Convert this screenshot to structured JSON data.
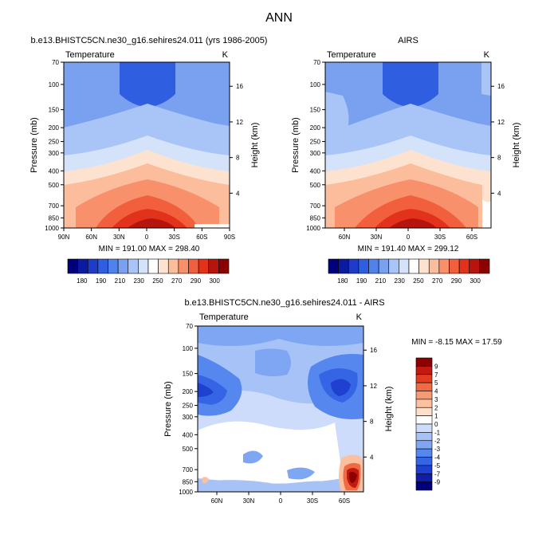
{
  "page": {
    "title": "ANN"
  },
  "colors": {
    "abs_levels": [
      180,
      190,
      200,
      210,
      220,
      230,
      240,
      250,
      260,
      270,
      280,
      290,
      300
    ],
    "abs_palette": [
      "#00007d",
      "#0c1a9f",
      "#1f3cc9",
      "#2f5fe0",
      "#4f82ea",
      "#7aa1f0",
      "#a9c4f6",
      "#d4e3fa",
      "#ffffff",
      "#fde3cf",
      "#fbbd9c",
      "#f7906b",
      "#f25f3c",
      "#e2321c",
      "#b5150c",
      "#8c0000"
    ],
    "diff_palette": [
      "#00007d",
      "#0f1ea8",
      "#1f40d0",
      "#3565e5",
      "#5687ee",
      "#7ea6f2",
      "#a6c2f6",
      "#cddcfa",
      "#ffffff",
      "#fde0cc",
      "#fbc0a0",
      "#f79a74",
      "#f16a43",
      "#e23c22",
      "#c21a10",
      "#8c0000"
    ]
  },
  "chart_data": [
    {
      "type": "heatmap",
      "title": "b.e13.BHISTC5CN.ne30_g16.sehires24.011 (yrs 1986-2005)",
      "left_label": "Temperature",
      "right_label": "K",
      "ylabel": "Pressure (mb)",
      "ylabel_right": "Height (km)",
      "x_ticks": [
        "90N",
        "60N",
        "30N",
        "0",
        "30S",
        "60S",
        "90S"
      ],
      "x_tick_values": [
        90,
        60,
        30,
        0,
        -30,
        -60,
        -90
      ],
      "xlim": [
        90,
        -90
      ],
      "y_ticks": [
        70,
        100,
        150,
        200,
        250,
        300,
        400,
        500,
        700,
        850,
        1000
      ],
      "ylim": [
        1000,
        70
      ],
      "y_scale": "log",
      "height_ticks": [
        4,
        8,
        12,
        16
      ],
      "min_max": "MIN = 191.00   MAX = 298.40",
      "min": 191.0,
      "max": 298.4,
      "colorbar_labels": [
        "180",
        "190",
        "210",
        "230",
        "250",
        "270",
        "290",
        "300"
      ]
    },
    {
      "type": "heatmap",
      "title": "AIRS",
      "left_label": "Temperature",
      "right_label": "K",
      "ylabel": "Pressure (mb)",
      "ylabel_right": "Height (km)",
      "x_ticks": [
        "60N",
        "30N",
        "0",
        "30S",
        "60S"
      ],
      "x_tick_values": [
        60,
        30,
        0,
        -30,
        -60
      ],
      "xlim": [
        78,
        -78
      ],
      "y_ticks": [
        70,
        100,
        150,
        200,
        250,
        300,
        400,
        500,
        700,
        850,
        1000
      ],
      "ylim": [
        1000,
        70
      ],
      "y_scale": "log",
      "height_ticks": [
        4,
        8,
        12,
        16
      ],
      "min_max": "MIN = 191.40   MAX = 299.12",
      "min": 191.4,
      "max": 299.12,
      "colorbar_labels": [
        "180",
        "190",
        "210",
        "230",
        "250",
        "270",
        "290",
        "300"
      ]
    },
    {
      "type": "heatmap",
      "title": "b.e13.BHISTC5CN.ne30_g16.sehires24.011 - AIRS",
      "left_label": "Temperature",
      "right_label": "K",
      "ylabel": "Pressure (mb)",
      "ylabel_right": "Height (km)",
      "x_ticks": [
        "60N",
        "30N",
        "0",
        "30S",
        "60S"
      ],
      "x_tick_values": [
        60,
        30,
        0,
        -30,
        -60
      ],
      "xlim": [
        78,
        -78
      ],
      "y_ticks": [
        70,
        100,
        150,
        200,
        250,
        300,
        400,
        500,
        700,
        850,
        1000
      ],
      "ylim": [
        1000,
        70
      ],
      "y_scale": "log",
      "height_ticks": [
        4,
        8,
        12,
        16
      ],
      "min_max": "MIN =  -8.15   MAX =  17.59",
      "min": -8.15,
      "max": 17.59,
      "colorbar_labels": [
        "9",
        "7",
        "5",
        "4",
        "3",
        "2",
        "1",
        "0",
        "-1",
        "-2",
        "-3",
        "-4",
        "-5",
        "-7",
        "-9"
      ],
      "colorbar_orientation": "vertical"
    }
  ]
}
